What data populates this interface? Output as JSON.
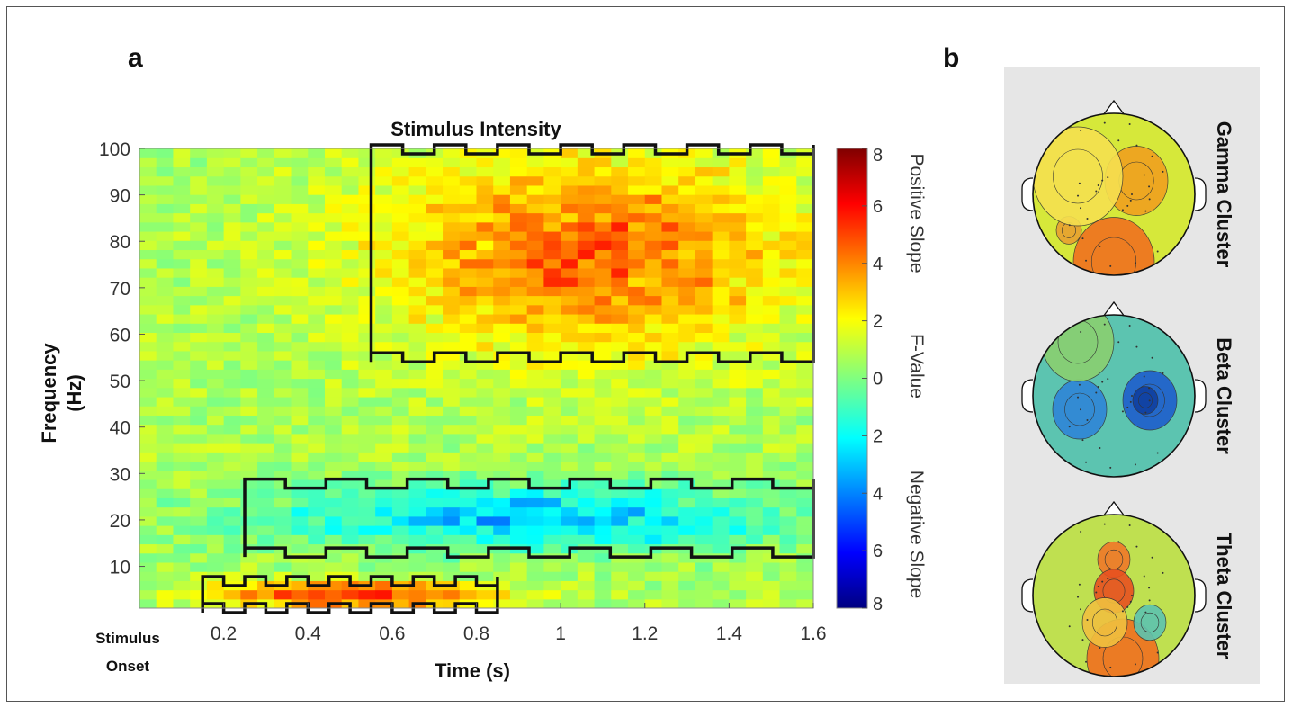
{
  "panels": {
    "a_label": "a",
    "b_label": "b"
  },
  "chart_data": {
    "type": "heatmap",
    "title": "Stimulus Intensity",
    "xlabel": "Time (s)",
    "ylabel_line1": "Frequency",
    "ylabel_line2": "(Hz)",
    "x_origin_label_line1": "Stimulus",
    "x_origin_label_line2": "Onset",
    "xlim": [
      0,
      1.6
    ],
    "ylim": [
      1,
      100
    ],
    "x_ticks": [
      0.2,
      0.4,
      0.6,
      0.8,
      1,
      1.2,
      1.4,
      1.6
    ],
    "x_tick_labels": [
      "0.2",
      "0.4",
      "0.6",
      "0.8",
      "1",
      "1.2",
      "1.4",
      "1.6"
    ],
    "y_ticks": [
      10,
      20,
      30,
      40,
      50,
      60,
      70,
      80,
      90,
      100
    ],
    "y_tick_labels": [
      "10",
      "20",
      "30",
      "40",
      "50",
      "60",
      "70",
      "80",
      "90",
      "100"
    ],
    "colorbar": {
      "label_top": "Positive Slope",
      "label_mid": "F-Value",
      "label_bottom": "Negative Slope",
      "range": [
        -8,
        8
      ],
      "tick_values": [
        8,
        6,
        4,
        2,
        0,
        -2,
        -4,
        -6,
        -8
      ],
      "tick_labels": [
        "8",
        "6",
        "4",
        "2",
        "0",
        "2",
        "4",
        "6",
        "8"
      ]
    },
    "regions": [
      {
        "name": "gamma",
        "t": [
          0.55,
          1.6
        ],
        "f": [
          55,
          100
        ],
        "value": 3.5
      },
      {
        "name": "beta",
        "t": [
          0.25,
          1.6
        ],
        "f": [
          13,
          28
        ],
        "value": -3.5
      },
      {
        "name": "theta",
        "t": [
          0.15,
          0.85
        ],
        "f": [
          1,
          7
        ],
        "value": 4.5
      }
    ],
    "topomaps": [
      {
        "label": "Gamma Cluster",
        "type": "gamma"
      },
      {
        "label": "Beta Cluster",
        "type": "beta"
      },
      {
        "label": "Theta Cluster",
        "type": "theta"
      }
    ]
  }
}
